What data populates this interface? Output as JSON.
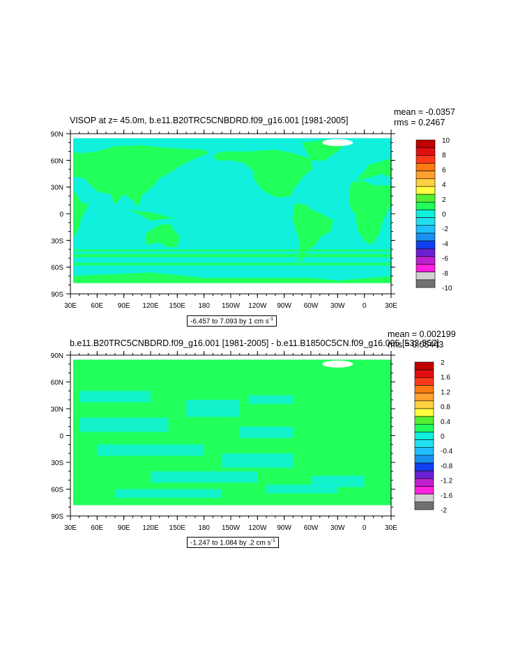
{
  "colors": {
    "land": "#ffffff",
    "ocean_positive": "#20ff5a",
    "ocean_negative": "#10f0dc",
    "axis": "#000000"
  },
  "lon_ticks": [
    "30E",
    "60E",
    "90E",
    "120E",
    "150E",
    "180",
    "150W",
    "120W",
    "90W",
    "60W",
    "30W",
    "0",
    "30E"
  ],
  "lat_ticks": [
    "90N",
    "60N",
    "30N",
    "0",
    "30S",
    "60S",
    "90S"
  ],
  "chart_data": [
    {
      "type": "heatmap",
      "title": "VISOP at z=  45.0m, b.e11.B20TRC5CNBDRD.f09_g16.001 [1981-2005]",
      "stat_mean": "mean = -0.0357",
      "stat_rms": "rms = 0.2467",
      "info": "-6.457 to 7.093 by 1 cm s",
      "info_sup": "-1",
      "xlim": [
        "30E",
        "30E (390)"
      ],
      "ylim": [
        -90,
        90
      ],
      "colorbar_labels": [
        "10",
        "8",
        "6",
        "4",
        "2",
        "0",
        "-2",
        "-4",
        "-6",
        "-8",
        "-10"
      ],
      "colorbar_colors": [
        "#c00000",
        "#e01010",
        "#ff3a1a",
        "#ff7a10",
        "#ffa030",
        "#ffd040",
        "#ffff40",
        "#55ee33",
        "#20ff5a",
        "#10f0dc",
        "#22e0f0",
        "#20c0ff",
        "#1a90f0",
        "#1040f0",
        "#6a20d0",
        "#c020d0",
        "#ff20e0",
        "#d0d0d0",
        "#707070"
      ],
      "dominant": "positive_land_oceans"
    },
    {
      "type": "heatmap",
      "title": "b.e11.B20TRC5CNBDRD.f09_g16.001 [1981-2005] - b.e11.B1850C5CN.f09_g16.005 [533-557]",
      "stat_mean": "mean = 0.002199",
      "stat_rms": "rms = 0.05443",
      "info": "-1.247 to 1.084 by .2 cm s",
      "info_sup": "-1",
      "xlim": [
        "30E",
        "30E (390)"
      ],
      "ylim": [
        -90,
        90
      ],
      "colorbar_labels": [
        "2",
        "1.6",
        "1.2",
        "0.8",
        "0.4",
        "0",
        "-0.4",
        "-0.8",
        "-1.2",
        "-1.6",
        "-2"
      ],
      "colorbar_colors": [
        "#c00000",
        "#e01010",
        "#ff3a1a",
        "#ff7a10",
        "#ffa030",
        "#ffd040",
        "#ffff40",
        "#55ee33",
        "#20ff5a",
        "#10f0dc",
        "#22e0f0",
        "#20c0ff",
        "#1a90f0",
        "#1040f0",
        "#6a20d0",
        "#c020d0",
        "#ff20e0",
        "#d0d0d0",
        "#707070"
      ],
      "dominant": "positive"
    }
  ]
}
